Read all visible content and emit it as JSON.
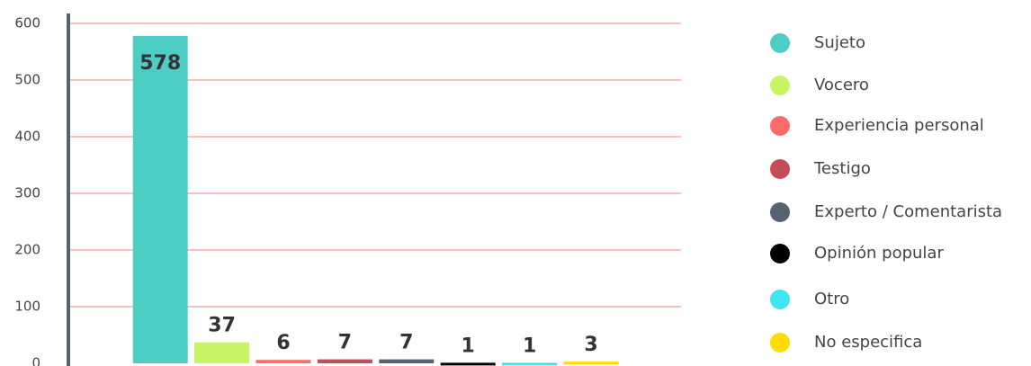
{
  "chart_data": {
    "type": "bar",
    "categories": [
      "Sujeto",
      "Vocero",
      "Experiencia personal",
      "Testigo",
      "Experto / Comentarista",
      "Opinión popular",
      "Otro",
      "No especifica"
    ],
    "values": [
      578,
      37,
      6,
      7,
      7,
      1,
      1,
      3
    ],
    "colors": [
      "#4ecdc4",
      "#c7f464",
      "#ff6b6b",
      "#c44d58",
      "#556270",
      "#000000",
      "#3ee6f2",
      "#ffdd00"
    ],
    "ylim": [
      0,
      600
    ],
    "yticks": [
      0,
      100,
      200,
      300,
      400,
      500,
      600
    ],
    "grid": true,
    "legend": "right"
  }
}
